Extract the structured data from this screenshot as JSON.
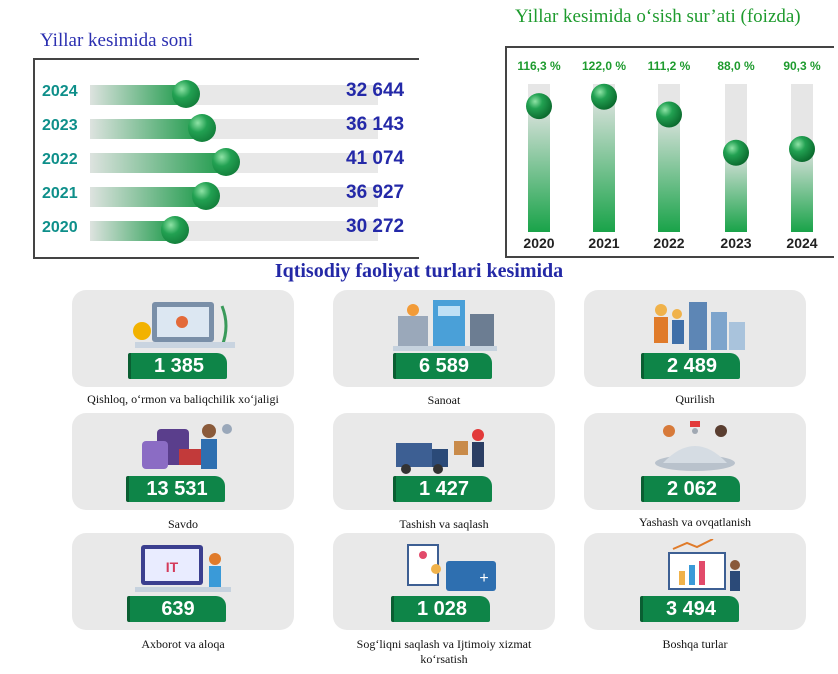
{
  "left_chart": {
    "title": "Yillar kesimida soni",
    "rows": [
      {
        "year": "2024",
        "value": 32644,
        "label": "32 644"
      },
      {
        "year": "2023",
        "value": 36143,
        "label": "36 143"
      },
      {
        "year": "2022",
        "value": 41074,
        "label": "41 074"
      },
      {
        "year": "2021",
        "value": 36927,
        "label": "36 927"
      },
      {
        "year": "2020",
        "value": 30272,
        "label": "30 272"
      }
    ]
  },
  "right_chart": {
    "title": "Yillar kesimida o‘sish sur’ati (foizda)",
    "columns": [
      {
        "year": "2020",
        "value": 116.3,
        "label": "116,3 %"
      },
      {
        "year": "2021",
        "value": 122.0,
        "label": "122,0 %"
      },
      {
        "year": "2022",
        "value": 111.2,
        "label": "111,2 %"
      },
      {
        "year": "2023",
        "value": 88.0,
        "label": "88,0 %"
      },
      {
        "year": "2024",
        "value": 90.3,
        "label": "90,3 %"
      }
    ]
  },
  "section_title": "Iqtisodiy faoliyat turlari kesimida",
  "cards": [
    {
      "value": "1 385",
      "label": "Qishloq, o‘rmon va baliqchilik xo‘jaligi",
      "icon": "farm-icon"
    },
    {
      "value": "6 589",
      "label": "Sanoat",
      "icon": "factory-icon"
    },
    {
      "value": "2 489",
      "label": "Qurilish",
      "icon": "construction-icon"
    },
    {
      "value": "13 531",
      "label": "Savdo",
      "icon": "shopping-icon"
    },
    {
      "value": "1 427",
      "label": "Tashish va saqlash",
      "icon": "delivery-icon"
    },
    {
      "value": "2 062",
      "label": "Yashash va ovqatlanish",
      "icon": "hotel-icon"
    },
    {
      "value": "639",
      "label": "Axborot va aloqa",
      "icon": "it-icon"
    },
    {
      "value": "1 028",
      "label": "Sog‘liqni saqlash va Ijtimoiy xizmat ko‘rsatish",
      "icon": "health-icon"
    },
    {
      "value": "3 494",
      "label": "Boshqa turlar",
      "icon": "analytics-icon"
    }
  ],
  "chart_data": [
    {
      "type": "bar",
      "title": "Yillar kesimida soni",
      "orientation": "horizontal",
      "categories": [
        "2024",
        "2023",
        "2022",
        "2021",
        "2020"
      ],
      "values": [
        32644,
        36143,
        41074,
        36927,
        30272
      ]
    },
    {
      "type": "bar",
      "title": "Yillar kesimida o‘sish sur’ati (foizda)",
      "categories": [
        "2020",
        "2021",
        "2022",
        "2023",
        "2024"
      ],
      "values": [
        116.3,
        122.0,
        111.2,
        88.0,
        90.3
      ]
    },
    {
      "type": "table",
      "title": "Iqtisodiy faoliyat turlari kesimida",
      "categories": [
        "Qishloq, o‘rmon va baliqchilik xo‘jaligi",
        "Sanoat",
        "Qurilish",
        "Savdo",
        "Tashish va saqlash",
        "Yashash va ovqatlanish",
        "Axborot va aloqa",
        "Sog‘liqni saqlash va Ijtimoiy xizmat ko‘rsatish",
        "Boshqa turlar"
      ],
      "values": [
        1385,
        6589,
        2489,
        13531,
        1427,
        2062,
        639,
        1028,
        3494
      ]
    }
  ]
}
